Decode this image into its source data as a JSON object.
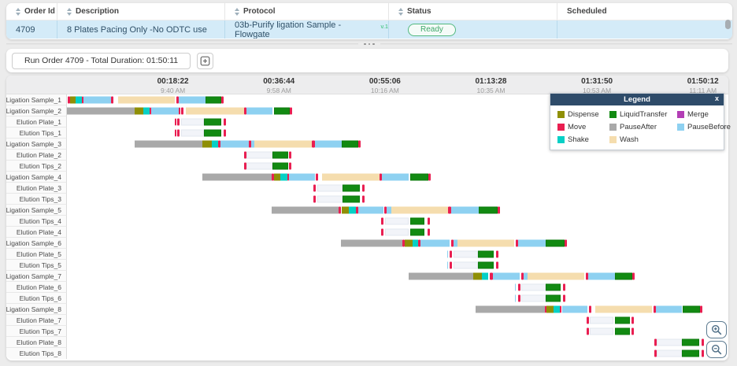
{
  "table": {
    "columns": [
      {
        "label": "Order Id",
        "sortable": true
      },
      {
        "label": "Description",
        "sortable": true
      },
      {
        "label": "Protocol",
        "sortable": true
      },
      {
        "label": "Status",
        "sortable": true
      },
      {
        "label": "Scheduled",
        "sortable": false
      }
    ],
    "row": {
      "order_id": "4709",
      "description": "8 Plates Pacing Only -No ODTC use",
      "protocol": "03b-Purify ligation Sample - Flowgate",
      "protocol_version": "v.1",
      "status": "Ready",
      "scheduled": ""
    }
  },
  "toolbar": {
    "run_button_label": "Run Order 4709 - Total Duration: 01:50:11"
  },
  "legend": {
    "title": "Legend",
    "close_label": "x",
    "items": [
      "Dispense",
      "LiquidTransfer",
      "Merge",
      "Move",
      "PauseAfter",
      "PauseBefore",
      "Shake",
      "Wash"
    ]
  },
  "chart_data": {
    "type": "gantt",
    "axis": {
      "range_seconds": [
        0,
        6860
      ],
      "ticks": [
        {
          "elapsed": "00:18:22",
          "clock": "9:40 AM",
          "seconds": 1102
        },
        {
          "elapsed": "00:36:44",
          "clock": "9:58 AM",
          "seconds": 2204
        },
        {
          "elapsed": "00:55:06",
          "clock": "10:16 AM",
          "seconds": 3306
        },
        {
          "elapsed": "01:13:28",
          "clock": "10:35 AM",
          "seconds": 4408
        },
        {
          "elapsed": "01:31:50",
          "clock": "10:53 AM",
          "seconds": 5510
        },
        {
          "elapsed": "01:50:12",
          "clock": "11:11 AM",
          "seconds": 6612
        }
      ]
    },
    "activity_colors": {
      "Dispense": "#8f8f06",
      "LiquidTransfer": "#128a12",
      "Merge": "#b33eb5",
      "Move": "#e91e51",
      "PauseAfter": "#a9a9a9",
      "PauseBefore": "#8ed1f1",
      "Shake": "#06d0c6",
      "Wash": "#f5ddae",
      "Wait": "#f2f4f9"
    },
    "rows": [
      {
        "label": "Ligation Sample_1",
        "segments": [
          [
            "Move",
            10,
            30
          ],
          [
            "Dispense",
            30,
            90
          ],
          [
            "Shake",
            90,
            155
          ],
          [
            "Move",
            155,
            175
          ],
          [
            "PauseBefore",
            175,
            455
          ],
          [
            "Move",
            460,
            485
          ],
          [
            "Wash",
            535,
            1125
          ],
          [
            "Move",
            1140,
            1165
          ],
          [
            "PauseBefore",
            1165,
            1440
          ],
          [
            "LiquidTransfer",
            1440,
            1605
          ],
          [
            "Move",
            1605,
            1630
          ]
        ]
      },
      {
        "label": "Ligation Sample_2",
        "segments": [
          [
            "PauseAfter",
            0,
            700
          ],
          [
            "Dispense",
            700,
            795
          ],
          [
            "Shake",
            795,
            860
          ],
          [
            "Move",
            860,
            880
          ],
          [
            "PauseBefore",
            880,
            1160
          ],
          [
            "Move",
            1160,
            1180
          ],
          [
            "Move",
            1190,
            1210
          ],
          [
            "Wash",
            1240,
            1845
          ],
          [
            "Move",
            1845,
            1870
          ],
          [
            "PauseBefore",
            1870,
            2140
          ],
          [
            "LiquidTransfer",
            2155,
            2315
          ],
          [
            "Move",
            2315,
            2340
          ]
        ]
      },
      {
        "label": "Elution Plate_1",
        "segments": [
          [
            "Move",
            1120,
            1140
          ],
          [
            "Move",
            1150,
            1170
          ],
          [
            "Wait",
            1185,
            1425
          ],
          [
            "LiquidTransfer",
            1425,
            1605
          ],
          [
            "Move",
            1630,
            1655
          ]
        ]
      },
      {
        "label": "Elution Tips_1",
        "segments": [
          [
            "Move",
            1120,
            1140
          ],
          [
            "Move",
            1150,
            1170
          ],
          [
            "Wait",
            1185,
            1425
          ],
          [
            "LiquidTransfer",
            1425,
            1605
          ],
          [
            "Move",
            1630,
            1655
          ]
        ]
      },
      {
        "label": "Ligation Sample_3",
        "segments": [
          [
            "PauseAfter",
            700,
            1410
          ],
          [
            "Dispense",
            1410,
            1505
          ],
          [
            "Shake",
            1505,
            1570
          ],
          [
            "Move",
            1570,
            1600
          ],
          [
            "PauseBefore",
            1600,
            1890
          ],
          [
            "Move",
            1890,
            1915
          ],
          [
            "PauseBefore",
            1915,
            1950
          ],
          [
            "Wash",
            1950,
            2545
          ],
          [
            "Move",
            2545,
            2575
          ],
          [
            "PauseBefore",
            2575,
            2860
          ],
          [
            "LiquidTransfer",
            2860,
            3030
          ],
          [
            "Move",
            3030,
            3055
          ]
        ]
      },
      {
        "label": "Elution Plate_2",
        "segments": [
          [
            "Move",
            1840,
            1865
          ],
          [
            "Wait",
            1870,
            2140
          ],
          [
            "LiquidTransfer",
            2140,
            2300
          ],
          [
            "Move",
            2310,
            2335
          ]
        ]
      },
      {
        "label": "Elution Tips_2",
        "segments": [
          [
            "Move",
            1840,
            1865
          ],
          [
            "Wait",
            1870,
            2140
          ],
          [
            "LiquidTransfer",
            2140,
            2300
          ],
          [
            "Move",
            2310,
            2335
          ]
        ]
      },
      {
        "label": "Ligation Sample_4",
        "segments": [
          [
            "PauseAfter",
            1410,
            2130
          ],
          [
            "Move",
            2130,
            2150
          ],
          [
            "Dispense",
            2150,
            2220
          ],
          [
            "Shake",
            2220,
            2290
          ],
          [
            "Move",
            2290,
            2305
          ],
          [
            "PauseBefore",
            2305,
            2575
          ],
          [
            "Move",
            2585,
            2610
          ],
          [
            "Wash",
            2655,
            3250
          ],
          [
            "Move",
            3250,
            3275
          ],
          [
            "PauseBefore",
            3275,
            3555
          ],
          [
            "LiquidTransfer",
            3570,
            3760
          ],
          [
            "Move",
            3760,
            3785
          ]
        ]
      },
      {
        "label": "Elution Plate_3",
        "segments": [
          [
            "Move",
            2560,
            2585
          ],
          [
            "Wait",
            2600,
            2865
          ],
          [
            "LiquidTransfer",
            2865,
            3045
          ],
          [
            "Move",
            3070,
            3095
          ]
        ]
      },
      {
        "label": "Elution Tips_3",
        "segments": [
          [
            "Move",
            2560,
            2585
          ],
          [
            "Wait",
            2600,
            2865
          ],
          [
            "LiquidTransfer",
            2865,
            3045
          ],
          [
            "Move",
            3070,
            3095
          ]
        ]
      },
      {
        "label": "Ligation Sample_5",
        "segments": [
          [
            "PauseAfter",
            2130,
            2825
          ],
          [
            "Move",
            2825,
            2850
          ],
          [
            "Dispense",
            2860,
            2930
          ],
          [
            "Shake",
            2930,
            3005
          ],
          [
            "Move",
            3005,
            3025
          ],
          [
            "PauseBefore",
            3025,
            3290
          ],
          [
            "Move",
            3295,
            3320
          ],
          [
            "PauseBefore",
            3320,
            3370
          ],
          [
            "Wash",
            3370,
            3960
          ],
          [
            "Move",
            3960,
            3995
          ],
          [
            "PauseBefore",
            3995,
            4285
          ],
          [
            "LiquidTransfer",
            4285,
            4480
          ],
          [
            "Move",
            4480,
            4505
          ]
        ]
      },
      {
        "label": "Elution Tips_4",
        "segments": [
          [
            "Move",
            3265,
            3290
          ],
          [
            "Wait",
            3305,
            3555
          ],
          [
            "LiquidTransfer",
            3570,
            3720
          ],
          [
            "Move",
            3750,
            3775
          ]
        ]
      },
      {
        "label": "Elution Plate_4",
        "segments": [
          [
            "Move",
            3265,
            3290
          ],
          [
            "Wait",
            3305,
            3555
          ],
          [
            "LiquidTransfer",
            3570,
            3720
          ],
          [
            "Move",
            3750,
            3775
          ]
        ]
      },
      {
        "label": "Ligation Sample_6",
        "segments": [
          [
            "PauseAfter",
            2845,
            3490
          ],
          [
            "Move",
            3490,
            3515
          ],
          [
            "Dispense",
            3515,
            3590
          ],
          [
            "Shake",
            3590,
            3655
          ],
          [
            "Move",
            3655,
            3675
          ],
          [
            "PauseBefore",
            3675,
            3975
          ],
          [
            "Move",
            3995,
            4020
          ],
          [
            "PauseBefore",
            4020,
            4060
          ],
          [
            "Wash",
            4060,
            4650
          ],
          [
            "Move",
            4665,
            4690
          ],
          [
            "PauseBefore",
            4690,
            4975
          ],
          [
            "LiquidTransfer",
            4975,
            5170
          ],
          [
            "Move",
            5170,
            5195
          ]
        ]
      },
      {
        "label": "Elution Plate_5",
        "segments": [
          [
            "PauseBefore",
            3950,
            3965
          ],
          [
            "Move",
            3975,
            4000
          ],
          [
            "Wait",
            4020,
            4275
          ],
          [
            "LiquidTransfer",
            4275,
            4440
          ],
          [
            "Move",
            4460,
            4485
          ]
        ]
      },
      {
        "label": "Elution Tips_5",
        "segments": [
          [
            "PauseBefore",
            3950,
            3965
          ],
          [
            "Move",
            3975,
            4000
          ],
          [
            "Wait",
            4020,
            4275
          ],
          [
            "LiquidTransfer",
            4275,
            4440
          ],
          [
            "Move",
            4460,
            4485
          ]
        ]
      },
      {
        "label": "Ligation Sample_7",
        "segments": [
          [
            "PauseAfter",
            3550,
            4220
          ],
          [
            "Dispense",
            4220,
            4315
          ],
          [
            "Shake",
            4315,
            4380
          ],
          [
            "Move",
            4395,
            4425
          ],
          [
            "PauseBefore",
            4425,
            4705
          ],
          [
            "Move",
            4720,
            4745
          ],
          [
            "PauseBefore",
            4745,
            4785
          ],
          [
            "Wash",
            4785,
            5380
          ],
          [
            "Move",
            5395,
            5420
          ],
          [
            "PauseBefore",
            5420,
            5700
          ],
          [
            "LiquidTransfer",
            5700,
            5880
          ],
          [
            "Move",
            5880,
            5905
          ]
        ]
      },
      {
        "label": "Elution Plate_6",
        "segments": [
          [
            "PauseBefore",
            4655,
            4670
          ],
          [
            "Move",
            4690,
            4715
          ],
          [
            "Wait",
            4720,
            4975
          ],
          [
            "LiquidTransfer",
            4980,
            5135
          ],
          [
            "Move",
            5160,
            5185
          ]
        ]
      },
      {
        "label": "Elution Tips_6",
        "segments": [
          [
            "PauseBefore",
            4655,
            4670
          ],
          [
            "Move",
            4690,
            4715
          ],
          [
            "Wait",
            4720,
            4975
          ],
          [
            "LiquidTransfer",
            4980,
            5135
          ],
          [
            "Move",
            5160,
            5185
          ]
        ]
      },
      {
        "label": "Ligation Sample_8",
        "segments": [
          [
            "PauseAfter",
            4245,
            4965
          ],
          [
            "Move",
            4965,
            4985
          ],
          [
            "Dispense",
            4985,
            5055
          ],
          [
            "Shake",
            5055,
            5125
          ],
          [
            "Move",
            5125,
            5145
          ],
          [
            "PauseBefore",
            5145,
            5410
          ],
          [
            "Move",
            5425,
            5450
          ],
          [
            "Wash",
            5490,
            6085
          ],
          [
            "Move",
            6100,
            6125
          ],
          [
            "PauseBefore",
            6125,
            6390
          ],
          [
            "LiquidTransfer",
            6405,
            6585
          ],
          [
            "Move",
            6585,
            6610
          ]
        ]
      },
      {
        "label": "Elution Plate_7",
        "segments": [
          [
            "Move",
            5400,
            5425
          ],
          [
            "Wait",
            5435,
            5685
          ],
          [
            "LiquidTransfer",
            5700,
            5850
          ],
          [
            "Move",
            5870,
            5895
          ]
        ]
      },
      {
        "label": "Elution Tips_7",
        "segments": [
          [
            "Move",
            5400,
            5425
          ],
          [
            "Wait",
            5435,
            5685
          ],
          [
            "LiquidTransfer",
            5700,
            5850
          ],
          [
            "Move",
            5870,
            5895
          ]
        ]
      },
      {
        "label": "Elution Plate_8",
        "segments": [
          [
            "Move",
            6105,
            6130
          ],
          [
            "Wait",
            6130,
            6390
          ],
          [
            "LiquidTransfer",
            6390,
            6570
          ],
          [
            "Move",
            6595,
            6620
          ]
        ]
      },
      {
        "label": "Elution Tips_8",
        "segments": [
          [
            "Move",
            6105,
            6130
          ],
          [
            "Wait",
            6130,
            6390
          ],
          [
            "LiquidTransfer",
            6390,
            6570
          ],
          [
            "Move",
            6595,
            6620
          ]
        ]
      }
    ]
  }
}
